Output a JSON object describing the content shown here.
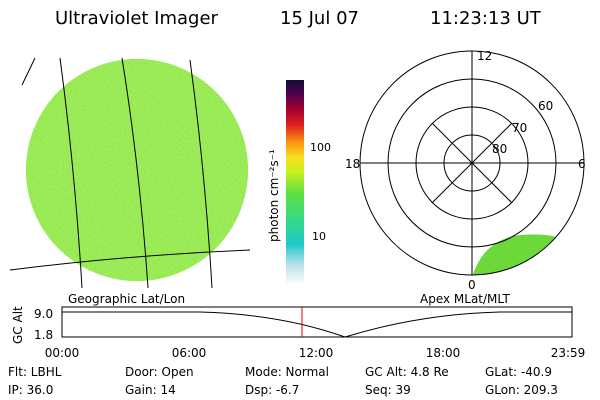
{
  "header": {
    "title": "Ultraviolet Imager",
    "date": "15 Jul 07",
    "time": "11:23:13 UT"
  },
  "colorbar": {
    "label": "photon cm⁻²s⁻¹",
    "ticks": [
      "100",
      "10"
    ]
  },
  "polar": {
    "mlt_labels": [
      "12",
      "18",
      "6",
      "0"
    ],
    "mlat_labels": [
      "60",
      "70",
      "80"
    ]
  },
  "captions": {
    "left": "Geographic Lat/Lon",
    "right": "Apex MLat/MLT"
  },
  "altitude_plot": {
    "y_label": "GC Alt",
    "y_ticks": [
      "9.0",
      "1.8"
    ],
    "x_ticks": [
      "00:00",
      "06:00",
      "12:00",
      "18:00",
      "23:59"
    ]
  },
  "status": {
    "rows": [
      [
        "Flt: LBHL",
        "Door: Open",
        "Mode: Normal",
        "GC Alt: 4.8 Re",
        "GLat: -40.9"
      ],
      [
        "IP: 36.0",
        "Gain: 14",
        "Dsp: -6.7",
        "Seq: 39",
        "GLon: 209.3"
      ]
    ]
  }
}
